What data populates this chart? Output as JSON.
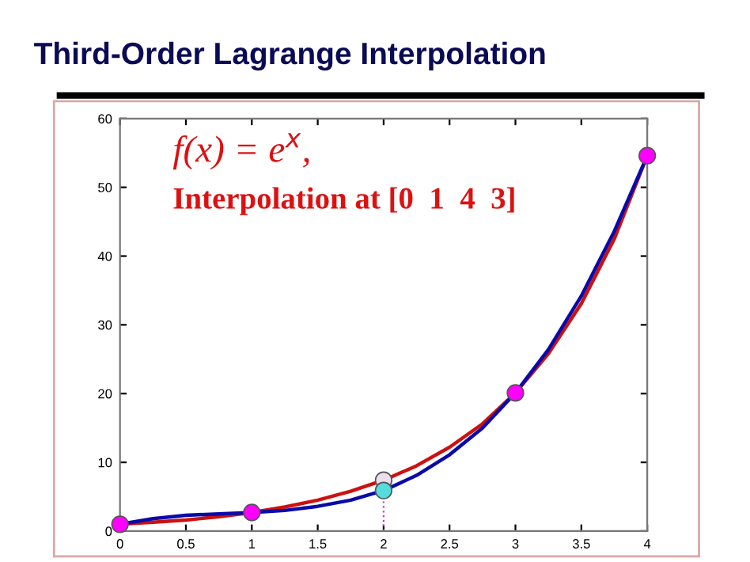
{
  "chart_data": {
    "type": "line",
    "title": "Third-Order Lagrange Interpolation",
    "annotations": [
      "f(x) = e$^{x}$,",
      "Interpolation at [0  1  4  3]"
    ],
    "xlim": [
      0,
      4
    ],
    "xticks": [
      0,
      0.5,
      1,
      1.5,
      2,
      2.5,
      3,
      3.5,
      4
    ],
    "ylim": [
      0,
      60
    ],
    "yticks": [
      0,
      10,
      20,
      30,
      40,
      50,
      60
    ],
    "grid": false,
    "legend": false,
    "series": [
      {
        "color": "#cc1111",
        "marker": "none",
        "line_style": "solid",
        "x": [
          0,
          0.25,
          0.5,
          0.75,
          1,
          1.25,
          1.5,
          1.75,
          2,
          2.25,
          2.5,
          2.75,
          3,
          3.25,
          3.5,
          3.75,
          4
        ],
        "values": [
          1.0,
          1.3,
          1.6,
          2.1,
          2.7,
          3.5,
          4.5,
          5.8,
          7.4,
          9.5,
          12.2,
          15.6,
          20.1,
          25.8,
          33.1,
          42.5,
          54.6
        ]
      },
      {
        "color": "#0a0aa8",
        "marker": "none",
        "line_style": "solid",
        "x": [
          0,
          0.25,
          0.5,
          0.75,
          1,
          1.25,
          1.5,
          1.75,
          2,
          2.25,
          2.5,
          2.75,
          3,
          3.25,
          3.5,
          3.75,
          4
        ],
        "values": [
          1.0,
          1.8,
          2.3,
          2.5,
          2.7,
          3.0,
          3.6,
          4.5,
          5.9,
          8.1,
          11.1,
          15.0,
          20.1,
          26.4,
          34.2,
          43.6,
          54.6
        ]
      },
      {
        "color": "#cc33cc",
        "marker": "none",
        "line_style": "dotted",
        "x": [
          2,
          2
        ],
        "values": [
          0,
          5.9
        ]
      },
      {
        "type": "scatter",
        "color": "#ff00ff",
        "marker": "circle",
        "x": [
          0,
          1,
          3,
          4
        ],
        "values": [
          1.0,
          2.7,
          20.1,
          54.6
        ]
      },
      {
        "type": "scatter",
        "color": "#eeddee",
        "marker": "circle",
        "x": [
          2
        ],
        "values": [
          7.4
        ]
      },
      {
        "type": "scatter",
        "color": "#55dddd",
        "marker": "circle",
        "x": [
          2
        ],
        "values": [
          5.9
        ]
      }
    ]
  }
}
